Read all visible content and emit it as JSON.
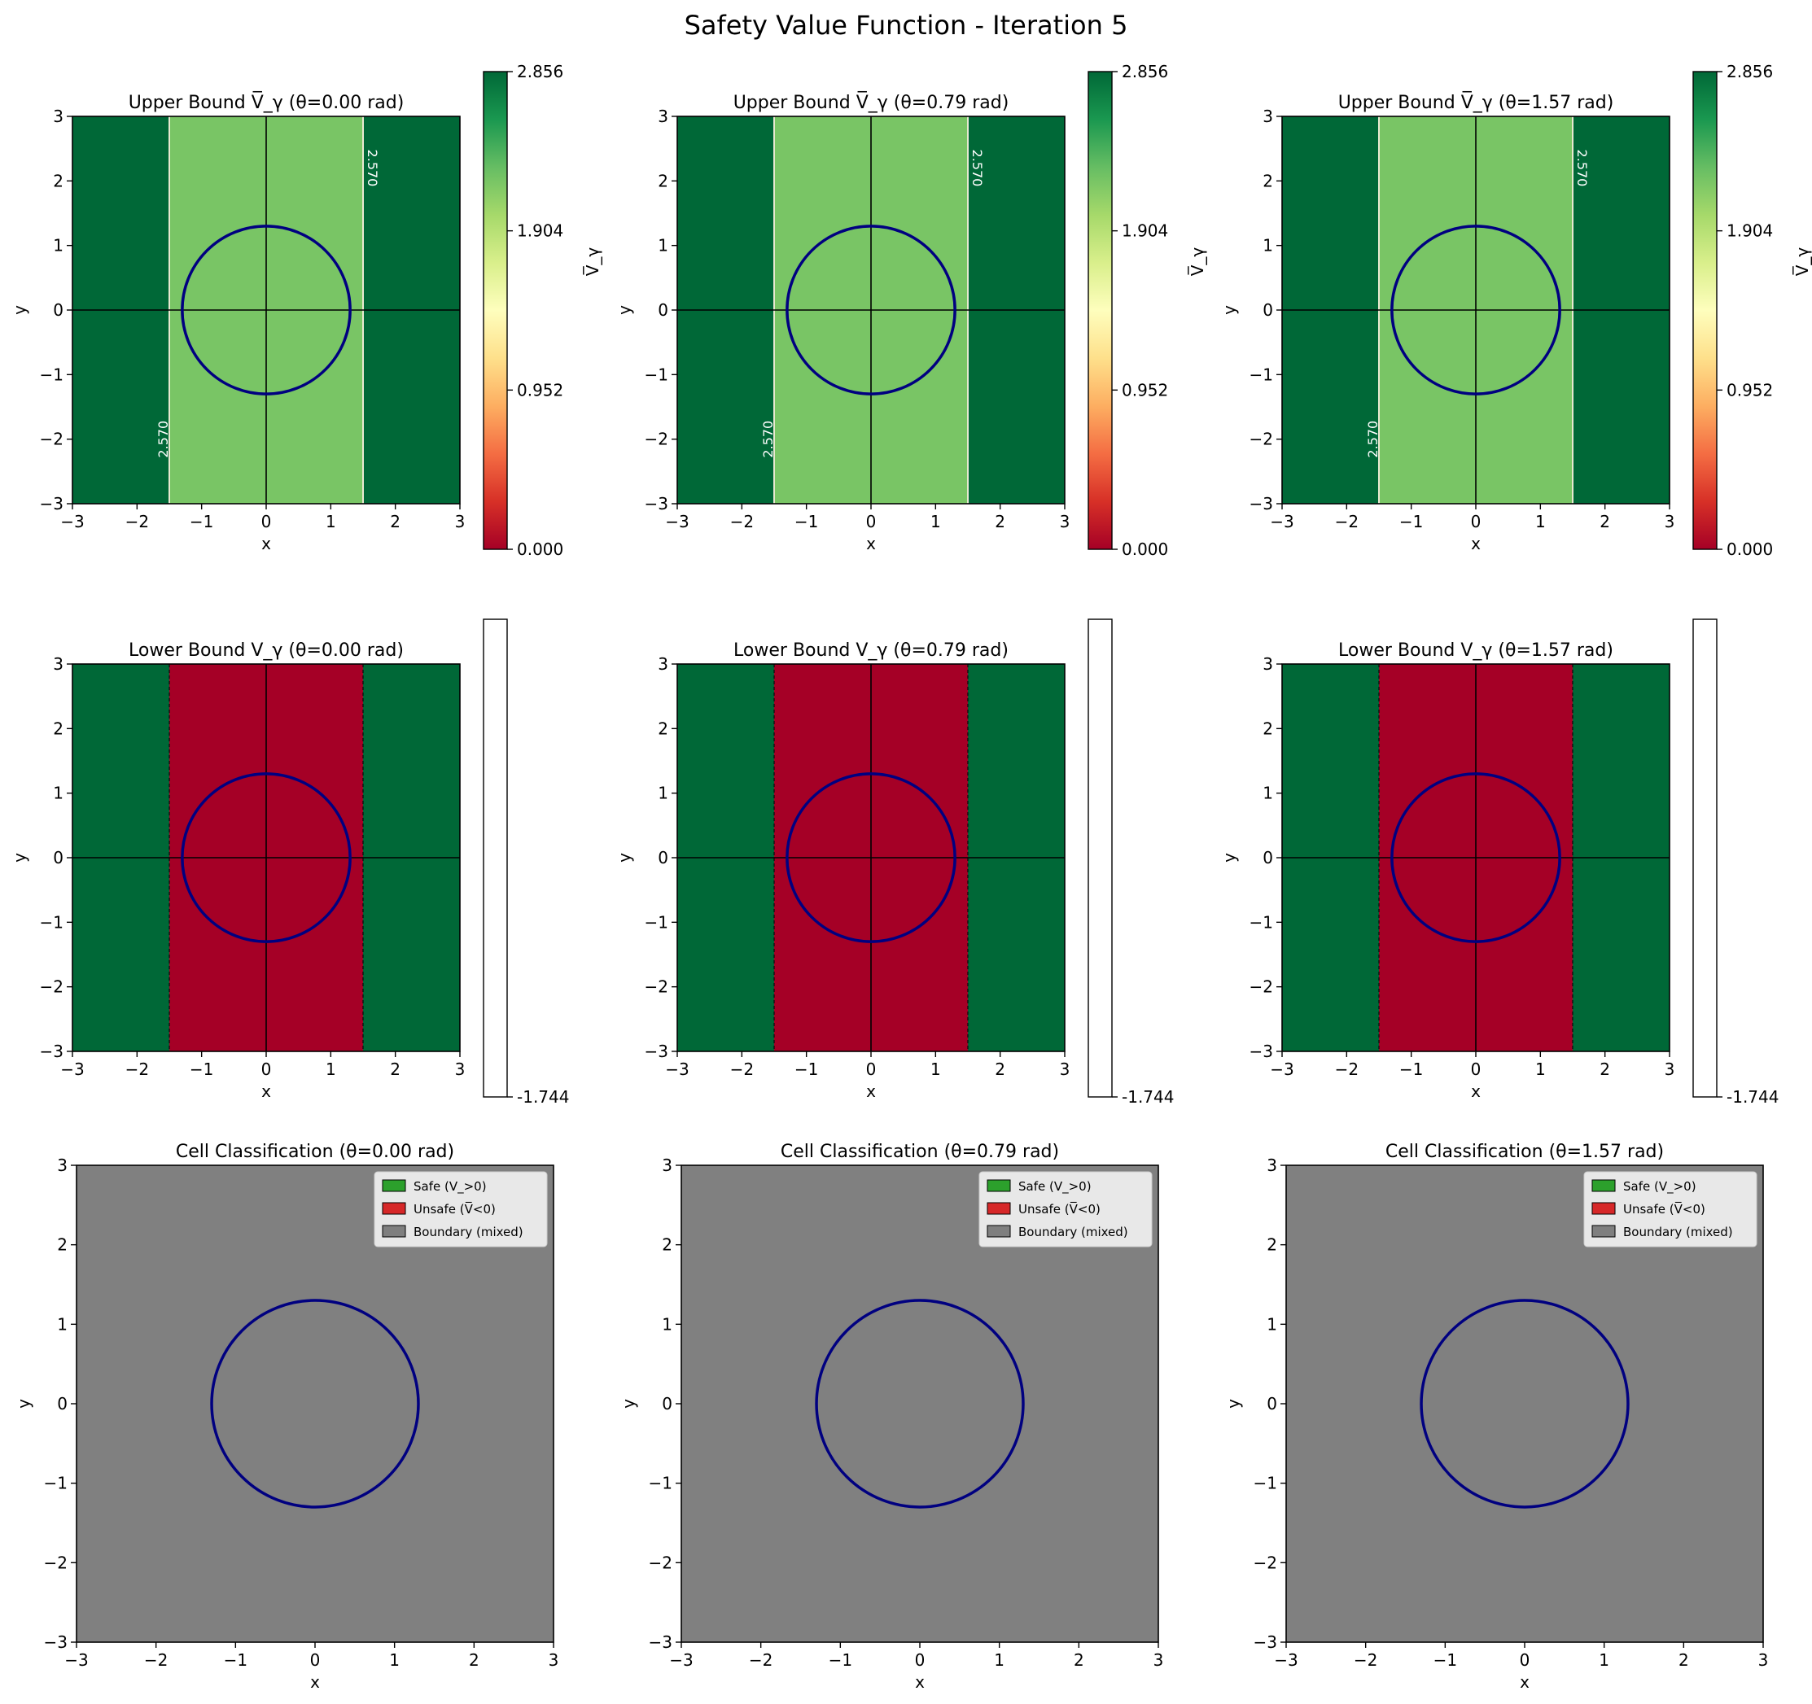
{
  "figure": {
    "title": "Safety Value Function - Iteration 5"
  },
  "colors": {
    "safe_green": "#006837",
    "neutral_yellow": "#fefebd",
    "unsafe_red": "#a50026",
    "boundary_gray": "#808080",
    "obstacle_circle": "#000080",
    "legend_safe": "#2ca02c",
    "legend_unsafe": "#d62728",
    "legend_boundary": "#7f7f7f",
    "colormap": [
      "#a50026",
      "#d73027",
      "#f46d43",
      "#fdae61",
      "#fee08b",
      "#fefebd",
      "#d9ef8b",
      "#a6d96a",
      "#66bd63",
      "#1a9850",
      "#006837"
    ]
  },
  "chart_data": [
    {
      "type": "heatmap",
      "title": "Upper Bound V̅_γ (θ=0.00 rad)",
      "xlabel": "x",
      "ylabel": "y",
      "xlim": [
        -3,
        3
      ],
      "ylim": [
        -3,
        3
      ],
      "xticks": [
        "−3",
        "−2",
        "−1",
        "0",
        "1",
        "2",
        "3"
      ],
      "yticks": [
        "−3",
        "−2",
        "−1",
        "0",
        "1",
        "2",
        "3"
      ],
      "regions": [
        {
          "x0": -3,
          "x1": -1.5,
          "value": 2.856
        },
        {
          "x0": -1.5,
          "x1": 1.5,
          "value": 2.2
        },
        {
          "x0": 1.5,
          "x1": 3,
          "value": 2.856
        }
      ],
      "obstacle": {
        "cx": 0,
        "cy": 0,
        "r": 1.3
      },
      "contour_labels": [
        "2.570",
        "2.570"
      ],
      "colorbar": {
        "label": "V̅_γ",
        "ticks": [
          "0.000",
          "0.952",
          "1.904",
          "2.856"
        ],
        "min": 0,
        "max": 2.856
      }
    },
    {
      "type": "heatmap",
      "title": "Upper Bound V̅_γ (θ=0.79 rad)",
      "xlabel": "x",
      "ylabel": "y",
      "xlim": [
        -3,
        3
      ],
      "ylim": [
        -3,
        3
      ],
      "xticks": [
        "−3",
        "−2",
        "−1",
        "0",
        "1",
        "2",
        "3"
      ],
      "yticks": [
        "−3",
        "−2",
        "−1",
        "0",
        "1",
        "2",
        "3"
      ],
      "regions": [
        {
          "x0": -3,
          "x1": -1.5,
          "value": 2.856
        },
        {
          "x0": -1.5,
          "x1": 1.5,
          "value": 2.2
        },
        {
          "x0": 1.5,
          "x1": 3,
          "value": 2.856
        }
      ],
      "obstacle": {
        "cx": 0,
        "cy": 0,
        "r": 1.3
      },
      "contour_labels": [
        "2.570",
        "2.570"
      ],
      "colorbar": {
        "label": "V̅_γ",
        "ticks": [
          "0.000",
          "0.952",
          "1.904",
          "2.856"
        ],
        "min": 0,
        "max": 2.856
      }
    },
    {
      "type": "heatmap",
      "title": "Upper Bound V̅_γ (θ=1.57 rad)",
      "xlabel": "x",
      "ylabel": "y",
      "xlim": [
        -3,
        3
      ],
      "ylim": [
        -3,
        3
      ],
      "xticks": [
        "−3",
        "−2",
        "−1",
        "0",
        "1",
        "2",
        "3"
      ],
      "yticks": [
        "−3",
        "−2",
        "−1",
        "0",
        "1",
        "2",
        "3"
      ],
      "regions": [
        {
          "x0": -3,
          "x1": -1.5,
          "value": 2.856
        },
        {
          "x0": -1.5,
          "x1": 1.5,
          "value": 2.2
        },
        {
          "x0": 1.5,
          "x1": 3,
          "value": 2.856
        }
      ],
      "obstacle": {
        "cx": 0,
        "cy": 0,
        "r": 1.3
      },
      "contour_labels": [
        "2.570",
        "2.570"
      ],
      "colorbar": {
        "label": "V̅_γ",
        "ticks": [
          "0.000",
          "0.952",
          "1.904",
          "2.856"
        ],
        "min": 0,
        "max": 2.856
      }
    },
    {
      "type": "heatmap",
      "title": "Lower Bound V_γ (θ=0.00 rad)",
      "xlabel": "x",
      "ylabel": "y",
      "xlim": [
        -3,
        3
      ],
      "ylim": [
        -3,
        3
      ],
      "xticks": [
        "−3",
        "−2",
        "−1",
        "0",
        "1",
        "2",
        "3"
      ],
      "yticks": [
        "−3",
        "−2",
        "−1",
        "0",
        "1",
        "2",
        "3"
      ],
      "regions": [
        {
          "x0": -3,
          "x1": -1.5,
          "value": 1
        },
        {
          "x0": -1.5,
          "x1": 1.5,
          "value": -1.744
        },
        {
          "x0": 1.5,
          "x1": 3,
          "value": 1
        }
      ],
      "obstacle": {
        "cx": 0,
        "cy": 0,
        "r": 1.3
      },
      "colorbar": {
        "label": "",
        "ticks": [
          "-1.744"
        ],
        "empty": true
      }
    },
    {
      "type": "heatmap",
      "title": "Lower Bound V_γ (θ=0.79 rad)",
      "xlabel": "x",
      "ylabel": "y",
      "xlim": [
        -3,
        3
      ],
      "ylim": [
        -3,
        3
      ],
      "xticks": [
        "−3",
        "−2",
        "−1",
        "0",
        "1",
        "2",
        "3"
      ],
      "yticks": [
        "−3",
        "−2",
        "−1",
        "0",
        "1",
        "2",
        "3"
      ],
      "regions": [
        {
          "x0": -3,
          "x1": -1.5,
          "value": 1
        },
        {
          "x0": -1.5,
          "x1": 1.5,
          "value": -1.744
        },
        {
          "x0": 1.5,
          "x1": 3,
          "value": 1
        }
      ],
      "obstacle": {
        "cx": 0,
        "cy": 0,
        "r": 1.3
      },
      "colorbar": {
        "label": "",
        "ticks": [
          "-1.744"
        ],
        "empty": true
      }
    },
    {
      "type": "heatmap",
      "title": "Lower Bound V_γ (θ=1.57 rad)",
      "xlabel": "x",
      "ylabel": "y",
      "xlim": [
        -3,
        3
      ],
      "ylim": [
        -3,
        3
      ],
      "xticks": [
        "−3",
        "−2",
        "−1",
        "0",
        "1",
        "2",
        "3"
      ],
      "yticks": [
        "−3",
        "−2",
        "−1",
        "0",
        "1",
        "2",
        "3"
      ],
      "regions": [
        {
          "x0": -3,
          "x1": -1.5,
          "value": 1
        },
        {
          "x0": -1.5,
          "x1": 1.5,
          "value": -1.744
        },
        {
          "x0": 1.5,
          "x1": 3,
          "value": 1
        }
      ],
      "obstacle": {
        "cx": 0,
        "cy": 0,
        "r": 1.3
      },
      "colorbar": {
        "label": "",
        "ticks": [
          "-1.744"
        ],
        "empty": true
      }
    },
    {
      "type": "heatmap",
      "title": "Cell Classification (θ=0.00 rad)",
      "xlabel": "x",
      "ylabel": "y",
      "xlim": [
        -3,
        3
      ],
      "ylim": [
        -3,
        3
      ],
      "xticks": [
        "−3",
        "−2",
        "−1",
        "0",
        "1",
        "2",
        "3"
      ],
      "yticks": [
        "−3",
        "−2",
        "−1",
        "0",
        "1",
        "2",
        "3"
      ],
      "classification": "boundary",
      "obstacle": {
        "cx": 0,
        "cy": 0,
        "r": 1.3
      },
      "legend": [
        "Safe (V_>0)",
        "Unsafe (V̅<0)",
        "Boundary (mixed)"
      ],
      "legend_position": "upper right"
    },
    {
      "type": "heatmap",
      "title": "Cell Classification (θ=0.79 rad)",
      "xlabel": "x",
      "ylabel": "y",
      "xlim": [
        -3,
        3
      ],
      "ylim": [
        -3,
        3
      ],
      "xticks": [
        "−3",
        "−2",
        "−1",
        "0",
        "1",
        "2",
        "3"
      ],
      "yticks": [
        "−3",
        "−2",
        "−1",
        "0",
        "1",
        "2",
        "3"
      ],
      "classification": "boundary",
      "obstacle": {
        "cx": 0,
        "cy": 0,
        "r": 1.3
      },
      "legend": [
        "Safe (V_>0)",
        "Unsafe (V̅<0)",
        "Boundary (mixed)"
      ],
      "legend_position": "upper right"
    },
    {
      "type": "heatmap",
      "title": "Cell Classification (θ=1.57 rad)",
      "xlabel": "x",
      "ylabel": "y",
      "xlim": [
        -3,
        3
      ],
      "ylim": [
        -3,
        3
      ],
      "xticks": [
        "−3",
        "−2",
        "−1",
        "0",
        "1",
        "2",
        "3"
      ],
      "yticks": [
        "−3",
        "−2",
        "−1",
        "0",
        "1",
        "2",
        "3"
      ],
      "classification": "boundary",
      "obstacle": {
        "cx": 0,
        "cy": 0,
        "r": 1.3
      },
      "legend": [
        "Safe (V_>0)",
        "Unsafe (V̅<0)",
        "Boundary (mixed)"
      ],
      "legend_position": "upper right"
    }
  ]
}
